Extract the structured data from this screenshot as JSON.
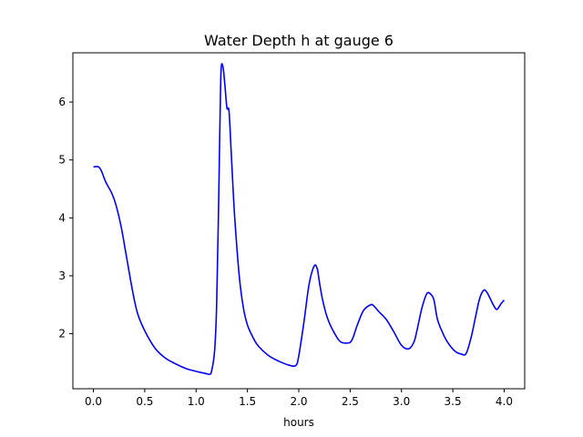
{
  "chart_data": {
    "type": "line",
    "title": "Water Depth h at gauge 6",
    "xlabel": "hours",
    "ylabel": "",
    "xlim": [
      -0.2,
      4.2
    ],
    "ylim": [
      1.05,
      6.85
    ],
    "xticks": [
      0.0,
      0.5,
      1.0,
      1.5,
      2.0,
      2.5,
      3.0,
      3.5,
      4.0
    ],
    "xtick_labels": [
      "0.0",
      "0.5",
      "1.0",
      "1.5",
      "2.0",
      "2.5",
      "3.0",
      "3.5",
      "4.0"
    ],
    "yticks": [
      2,
      3,
      4,
      5,
      6
    ],
    "ytick_labels": [
      "2",
      "3",
      "4",
      "5",
      "6"
    ],
    "grid": false,
    "series": [
      {
        "color": "#0000ff",
        "x": [
          0.0,
          0.05,
          0.08,
          0.12,
          0.18,
          0.22,
          0.27,
          0.32,
          0.38,
          0.43,
          0.5,
          0.6,
          0.7,
          0.8,
          0.9,
          1.0,
          1.05,
          1.1,
          1.13,
          1.15,
          1.18,
          1.2,
          1.22,
          1.24,
          1.26,
          1.28,
          1.3,
          1.32,
          1.34,
          1.36,
          1.38,
          1.42,
          1.46,
          1.5,
          1.55,
          1.6,
          1.7,
          1.8,
          1.9,
          1.97,
          2.0,
          2.05,
          2.1,
          2.15,
          2.18,
          2.2,
          2.23,
          2.27,
          2.32,
          2.4,
          2.48,
          2.52,
          2.57,
          2.63,
          2.7,
          2.73,
          2.78,
          2.85,
          2.92,
          3.0,
          3.07,
          3.12,
          3.15,
          3.2,
          3.25,
          3.3,
          3.32,
          3.35,
          3.4,
          3.45,
          3.52,
          3.58,
          3.63,
          3.68,
          3.72,
          3.76,
          3.8,
          3.83,
          3.86,
          3.9,
          3.93,
          3.97,
          4.0
        ],
        "y": [
          4.88,
          4.88,
          4.8,
          4.62,
          4.42,
          4.22,
          3.85,
          3.35,
          2.75,
          2.35,
          2.05,
          1.75,
          1.58,
          1.48,
          1.4,
          1.35,
          1.33,
          1.31,
          1.3,
          1.35,
          1.7,
          2.5,
          4.3,
          6.4,
          6.62,
          6.3,
          5.9,
          5.85,
          5.2,
          4.5,
          3.9,
          3.0,
          2.45,
          2.15,
          1.95,
          1.8,
          1.63,
          1.53,
          1.46,
          1.45,
          1.62,
          2.2,
          2.85,
          3.17,
          3.12,
          2.9,
          2.6,
          2.32,
          2.1,
          1.87,
          1.84,
          1.9,
          2.15,
          2.4,
          2.5,
          2.48,
          2.38,
          2.25,
          2.05,
          1.8,
          1.74,
          1.85,
          2.05,
          2.45,
          2.7,
          2.65,
          2.55,
          2.25,
          2.02,
          1.85,
          1.7,
          1.65,
          1.66,
          1.95,
          2.28,
          2.6,
          2.75,
          2.72,
          2.62,
          2.48,
          2.42,
          2.52,
          2.58
        ]
      }
    ]
  }
}
